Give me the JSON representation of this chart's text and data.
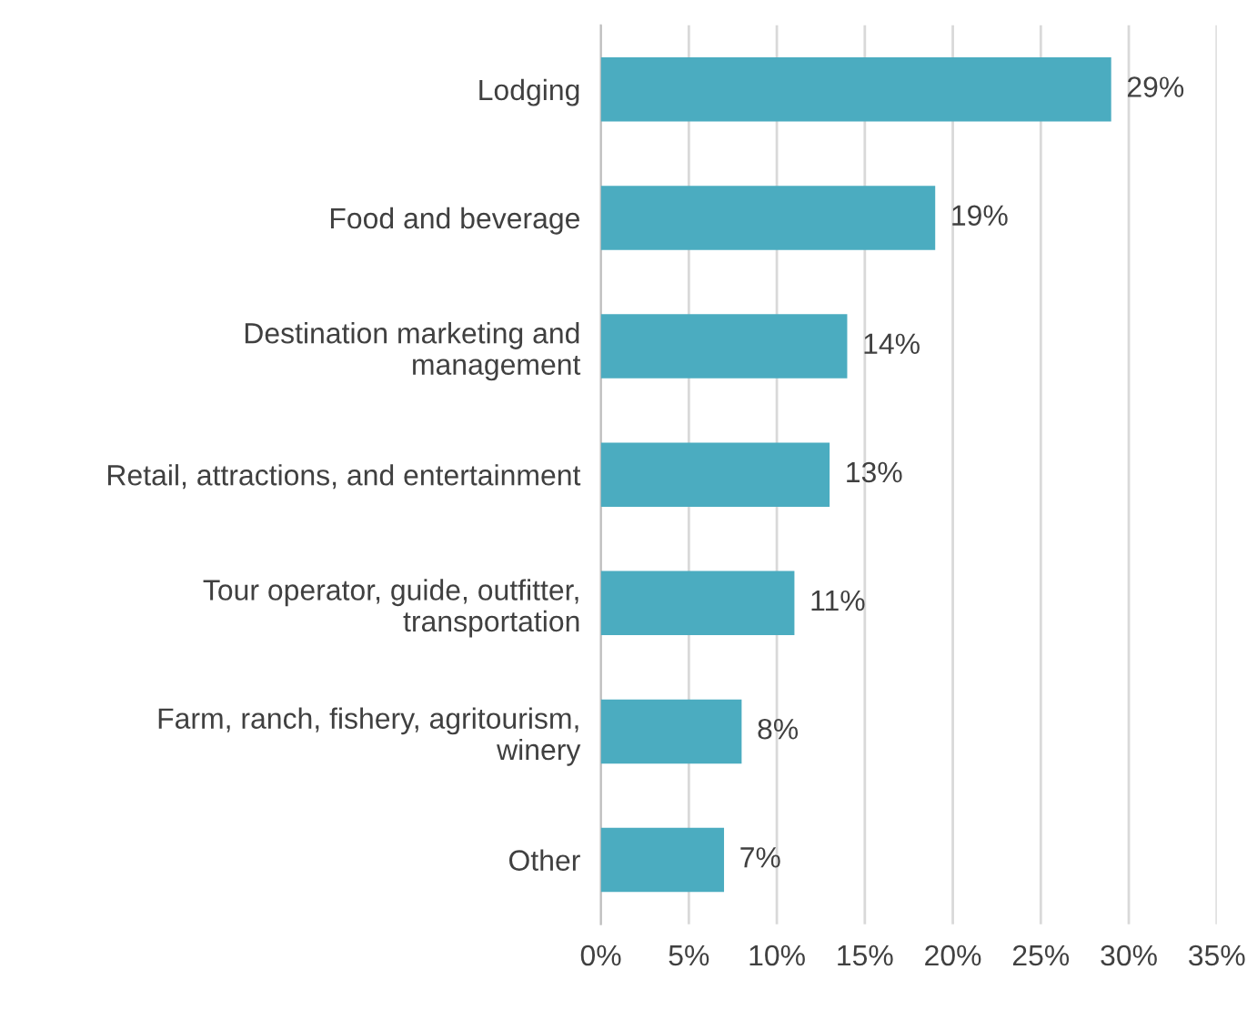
{
  "chart_data": {
    "type": "bar",
    "orientation": "horizontal",
    "categories": [
      "Lodging",
      "Food and beverage",
      "Destination marketing and\nmanagement",
      "Retail, attractions, and entertainment",
      "Tour operator, guide, outfitter,\ntransportation",
      "Farm, ranch, fishery, agritourism,\nwinery",
      "Other"
    ],
    "values": [
      29,
      19,
      14,
      13,
      11,
      8,
      7
    ],
    "value_labels": [
      "29%",
      "19%",
      "14%",
      "13%",
      "11%",
      "8%",
      "7%"
    ],
    "color": "#4bacc0",
    "xlim": [
      0,
      35
    ],
    "xticks": [
      {
        "value": 0,
        "label": "0%"
      },
      {
        "value": 5,
        "label": "5%"
      },
      {
        "value": 10,
        "label": "10%"
      },
      {
        "value": 15,
        "label": "15%"
      },
      {
        "value": 20,
        "label": "20%"
      },
      {
        "value": 25,
        "label": "25%"
      },
      {
        "value": 30,
        "label": "30%"
      },
      {
        "value": 35,
        "label": "35%"
      }
    ],
    "grid": "x",
    "legend": false
  }
}
